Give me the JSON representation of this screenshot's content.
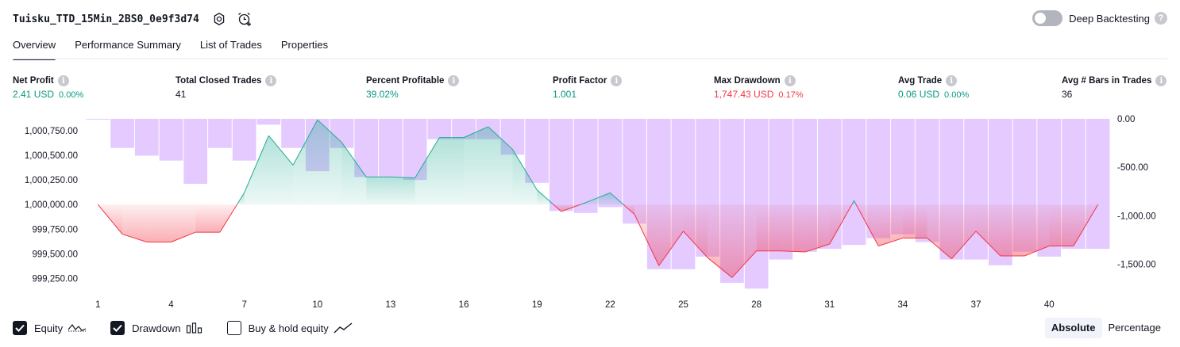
{
  "header": {
    "strategy_name": "Tuisku_TTD_15Min_2BS0_0e9f3d74",
    "settings_icon": "gear-icon",
    "alert_icon": "alarm-clock-add-icon",
    "deep_backtesting_label": "Deep Backtesting",
    "deep_backtesting_enabled": false
  },
  "tabs": [
    {
      "label": "Overview",
      "active": true
    },
    {
      "label": "Performance Summary",
      "active": false
    },
    {
      "label": "List of Trades",
      "active": false
    },
    {
      "label": "Properties",
      "active": false
    }
  ],
  "stats": [
    {
      "label": "Net Profit",
      "value": "2.41 USD",
      "pct": "0.00%",
      "tone": "green"
    },
    {
      "label": "Total Closed Trades",
      "value": "41",
      "pct": "",
      "tone": "dark"
    },
    {
      "label": "Percent Profitable",
      "value": "39.02%",
      "pct": "",
      "tone": "green"
    },
    {
      "label": "Profit Factor",
      "value": "1.001",
      "pct": "",
      "tone": "green"
    },
    {
      "label": "Max Drawdown",
      "value": "1,747.43 USD",
      "pct": "0.17%",
      "tone": "red"
    },
    {
      "label": "Avg Trade",
      "value": "0.06 USD",
      "pct": "0.00%",
      "tone": "green"
    },
    {
      "label": "Avg # Bars in Trades",
      "value": "36",
      "pct": "",
      "tone": "dark"
    }
  ],
  "legend": {
    "equity_label": "Equity",
    "equity_checked": true,
    "drawdown_label": "Drawdown",
    "drawdown_checked": true,
    "buyhold_label": "Buy & hold equity",
    "buyhold_checked": false
  },
  "mode": {
    "absolute_label": "Absolute",
    "percentage_label": "Percentage",
    "selected": "Absolute"
  },
  "colors": {
    "profit": "#089981",
    "loss": "#f23645",
    "drawdown_bar": "#e1c4ff",
    "equity_line_up": "#22ab94",
    "equity_line_down": "#f23645"
  },
  "chart_data": {
    "type": "line",
    "baseline": 1000000,
    "x_ticks": [
      "1",
      "4",
      "7",
      "10",
      "13",
      "16",
      "19",
      "22",
      "25",
      "28",
      "31",
      "34",
      "37",
      "40"
    ],
    "left_axis": {
      "ticks": [
        "1,000,750.00",
        "1,000,500.00",
        "1,000,250.00",
        "1,000,000.00",
        "999,750.00",
        "999,500.00",
        "999,250.00"
      ],
      "tick_values": [
        1000750,
        1000500,
        1000250,
        1000000,
        999750,
        999500,
        999250
      ],
      "range": [
        999150,
        1000870
      ]
    },
    "right_axis": {
      "ticks": [
        "0.00",
        "-500.00",
        "-1,000.00",
        "-1,500.00"
      ],
      "tick_values": [
        0,
        -500,
        -1000,
        -1500
      ],
      "range": [
        -1747.43,
        0
      ]
    },
    "series": [
      {
        "name": "Equity",
        "x": [
          1,
          2,
          3,
          4,
          5,
          6,
          7,
          8,
          9,
          10,
          11,
          12,
          13,
          14,
          15,
          16,
          17,
          18,
          19,
          20,
          21,
          22,
          23,
          24,
          25,
          26,
          27,
          28,
          29,
          30,
          31,
          32,
          33,
          34,
          35,
          36,
          37,
          38,
          39,
          40,
          41,
          42
        ],
        "values": [
          1000000,
          999700,
          999620,
          999620,
          999720,
          999720,
          1000120,
          1000700,
          1000400,
          1000860,
          1000630,
          1000280,
          1000280,
          1000270,
          1000680,
          1000680,
          1000790,
          1000560,
          1000150,
          999930,
          1000020,
          1000120,
          999900,
          999380,
          999730,
          999460,
          999260,
          999530,
          999530,
          999520,
          999600,
          1000040,
          999580,
          999660,
          999660,
          999450,
          999730,
          999480,
          999480,
          999580,
          999580,
          1000000
        ]
      },
      {
        "name": "Drawdown",
        "x": [
          1,
          2,
          3,
          4,
          5,
          6,
          7,
          8,
          9,
          10,
          11,
          12,
          13,
          14,
          15,
          16,
          17,
          18,
          19,
          20,
          21,
          22,
          23,
          24,
          25,
          26,
          27,
          28,
          29,
          30,
          31,
          32,
          33,
          34,
          35,
          36,
          37,
          38,
          39,
          40,
          41,
          42
        ],
        "values": [
          -5,
          -300,
          -380,
          -430,
          -670,
          -300,
          -430,
          -60,
          -300,
          -540,
          -300,
          -600,
          -600,
          -630,
          -210,
          -210,
          -210,
          -370,
          -660,
          -950,
          -970,
          -910,
          -1080,
          -1550,
          -1550,
          -1420,
          -1690,
          -1750,
          -1450,
          -1370,
          -1340,
          -1300,
          -1230,
          -1190,
          -1270,
          -1450,
          -1450,
          -1510,
          -1370,
          -1420,
          -1340,
          -1340
        ]
      }
    ]
  }
}
